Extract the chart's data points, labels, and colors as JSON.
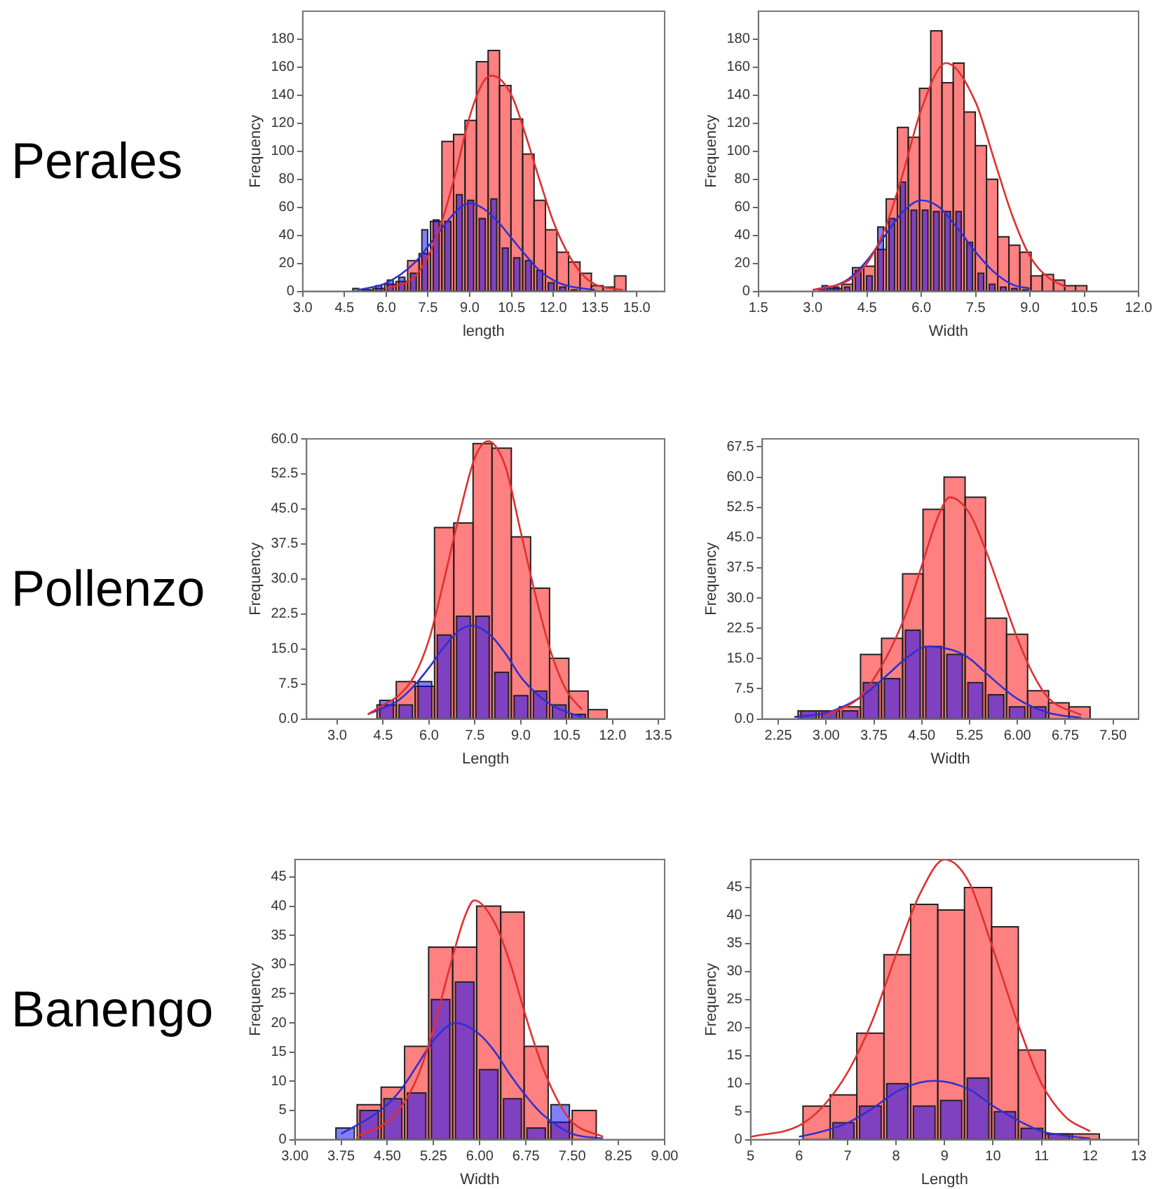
{
  "chart_data": [
    {
      "type": "histogram",
      "title": "Perales",
      "xlabel": "length",
      "ylabel": "Frequency",
      "xlim": [
        3,
        16
      ],
      "ylim": [
        0,
        200
      ],
      "xticks": [
        {
          "value": 3,
          "label": "3.0"
        },
        4.5,
        {
          "value": 6,
          "label": "6.0"
        },
        7.5,
        {
          "value": 9,
          "label": "9.0"
        },
        10.5,
        {
          "value": 12,
          "label": "12.0"
        },
        13.5,
        {
          "value": 15,
          "label": "15.0"
        }
      ],
      "yticks": [
        0,
        20,
        40,
        60,
        80,
        100,
        120,
        140,
        160,
        180
      ],
      "series": [
        {
          "color": "#ff8080",
          "bins": [
            5.11,
            5.53,
            5.94,
            6.35,
            6.77,
            7.18,
            7.59,
            8.0,
            8.42,
            8.83,
            9.24,
            9.66,
            10.07,
            10.48,
            10.9,
            11.31,
            11.72,
            12.13,
            12.55,
            12.96,
            13.37,
            13.79,
            14.2,
            14.61
          ],
          "values": [
            1,
            2,
            5,
            7,
            22,
            27,
            50,
            107,
            112,
            122,
            164,
            172,
            147,
            123,
            98,
            65,
            44,
            28,
            21,
            13,
            4,
            3,
            11
          ]
        },
        {
          "color": "#8080ff",
          "bins": [
            4.7,
            5.11,
            5.53,
            5.94,
            6.35,
            6.77,
            7.18,
            7.59,
            8.0,
            8.42,
            8.83,
            9.24,
            9.66,
            10.07,
            10.48,
            10.9,
            11.31,
            11.72,
            12.13,
            12.55,
            12.96
          ],
          "values": [
            2,
            1,
            4,
            8,
            10,
            13,
            44,
            51,
            50,
            69,
            65,
            52,
            66,
            31,
            24,
            22,
            15,
            6,
            3,
            1
          ]
        },
        {
          "type": "line",
          "color": "#e03030",
          "x": [
            6,
            7,
            7.5,
            8,
            8.5,
            9,
            9.5,
            9.8,
            10.5,
            11,
            11.5,
            12,
            12.5,
            13,
            13.5,
            14.5
          ],
          "values": [
            2,
            10,
            25,
            50,
            85,
            125,
            150,
            154,
            140,
            112,
            80,
            50,
            28,
            13,
            5,
            1
          ]
        },
        {
          "type": "line",
          "color": "#3030d0",
          "x": [
            5,
            6,
            7,
            7.5,
            8,
            8.5,
            9,
            9.5,
            10,
            10.5,
            11,
            11.5,
            12,
            12.5,
            13.5
          ],
          "values": [
            1,
            6,
            20,
            32,
            45,
            57,
            63,
            59,
            50,
            38,
            26,
            15,
            8,
            4,
            1
          ]
        }
      ]
    },
    {
      "type": "histogram",
      "xlabel": "Width",
      "ylabel": "Frequency",
      "xlim": [
        1.5,
        12
      ],
      "ylim": [
        0,
        200
      ],
      "xticks": [
        1.5,
        {
          "value": 3,
          "label": "3.0"
        },
        4.5,
        {
          "value": 6,
          "label": "6.0"
        },
        7.5,
        {
          "value": 9,
          "label": "9.0"
        },
        10.5,
        {
          "value": 12,
          "label": "12.0"
        }
      ],
      "yticks": [
        0,
        20,
        40,
        60,
        80,
        100,
        120,
        140,
        160,
        180
      ],
      "series": [
        {
          "color": "#ff8080",
          "bins": [
            3.18,
            3.49,
            3.8,
            4.1,
            4.41,
            4.72,
            5.03,
            5.34,
            5.64,
            5.95,
            6.26,
            6.57,
            6.88,
            7.18,
            7.49,
            7.8,
            8.11,
            8.42,
            8.72,
            9.03,
            9.34,
            9.65,
            9.96,
            10.26,
            10.57
          ],
          "values": [
            2,
            2,
            5,
            17,
            18,
            30,
            66,
            117,
            110,
            145,
            186,
            149,
            163,
            128,
            104,
            80,
            39,
            33,
            28,
            11,
            12,
            8,
            4,
            4
          ]
        },
        {
          "color": "#8080ff",
          "bins": [
            3.18,
            3.49,
            3.8,
            4.1,
            4.41,
            4.72,
            5.03,
            5.34,
            5.64,
            5.95,
            6.26,
            6.57,
            6.88,
            7.18,
            7.49,
            7.8,
            8.11,
            8.42,
            8.72,
            9.03
          ],
          "values": [
            4,
            3,
            3,
            15,
            11,
            46,
            52,
            78,
            58,
            58,
            57,
            57,
            57,
            35,
            13,
            5,
            3,
            2,
            1
          ]
        },
        {
          "type": "line",
          "color": "#e03030",
          "x": [
            3,
            4,
            4.5,
            5,
            5.5,
            6,
            6.68,
            7.5,
            8,
            8.5,
            9,
            9.5,
            10
          ],
          "values": [
            1,
            8,
            20,
            45,
            85,
            130,
            163,
            135,
            95,
            55,
            25,
            10,
            3
          ]
        },
        {
          "type": "line",
          "color": "#3030d0",
          "x": [
            3,
            3.5,
            4,
            4.5,
            5,
            5.5,
            6,
            6.5,
            7,
            7.5,
            8,
            8.5,
            9
          ],
          "values": [
            1,
            3,
            9,
            22,
            40,
            57,
            65,
            60,
            45,
            28,
            14,
            5,
            2
          ]
        }
      ]
    },
    {
      "type": "histogram",
      "title": "Pollenzo",
      "xlabel": "Length",
      "ylabel": "Frequency",
      "xlim": [
        2,
        13.7
      ],
      "ylim": [
        0,
        60
      ],
      "xticks": [
        {
          "value": 3,
          "label": "3.0"
        },
        4.5,
        {
          "value": 6,
          "label": "6.0"
        },
        7.5,
        {
          "value": 9,
          "label": "9.0"
        },
        10.5,
        {
          "value": 12,
          "label": "12.0"
        },
        13.5
      ],
      "yticks": [
        {
          "value": 0,
          "label": "0.0"
        },
        7.5,
        {
          "value": 15,
          "label": "15.0"
        },
        22.5,
        {
          "value": 30,
          "label": "30.0"
        },
        37.5,
        {
          "value": 45,
          "label": "45.0"
        },
        52.5,
        {
          "value": 60,
          "label": "60.0"
        }
      ],
      "series": [
        {
          "color": "#ff8080",
          "bins": [
            4.3,
            4.93,
            5.55,
            6.18,
            6.81,
            7.44,
            8.06,
            8.69,
            9.32,
            9.94,
            10.57,
            11.2,
            11.82
          ],
          "values": [
            3,
            8,
            7,
            41,
            42,
            59,
            58,
            39,
            28,
            13,
            6,
            2
          ]
        },
        {
          "color": "#8080ff",
          "bins": [
            4.3,
            4.93,
            5.55,
            6.18,
            6.81,
            7.44,
            8.06,
            8.69,
            9.32,
            9.94,
            10.57,
            11.2
          ],
          "values": [
            4,
            3,
            8,
            18,
            22,
            22,
            10,
            5,
            6,
            3,
            1
          ]
        },
        {
          "type": "line",
          "color": "#e03030",
          "x": [
            4,
            4.5,
            5,
            5.5,
            6,
            6.5,
            7,
            7.5,
            7.93,
            8.5,
            9,
            9.5,
            10,
            10.5,
            11
          ],
          "values": [
            1,
            3,
            5,
            9,
            17,
            30,
            44,
            56,
            59.5,
            54,
            40,
            26,
            14,
            6,
            2
          ]
        },
        {
          "type": "line",
          "color": "#3030d0",
          "x": [
            4,
            5,
            5.5,
            6,
            6.5,
            7,
            7.4,
            8,
            8.5,
            9,
            9.5,
            10,
            10.5,
            11
          ],
          "values": [
            1,
            4,
            7,
            11,
            15.5,
            19,
            20,
            18,
            14,
            9,
            5.5,
            3,
            1.5,
            0.5
          ]
        }
      ]
    },
    {
      "type": "histogram",
      "xlabel": "Width",
      "ylabel": "Frequency",
      "xlim": [
        2,
        7.9
      ],
      "ylim": [
        0,
        69.5
      ],
      "xticks": [
        2.25,
        {
          "value": 3,
          "label": "3.00"
        },
        3.75,
        {
          "value": 4.5,
          "label": "4.50"
        },
        5.25,
        {
          "value": 6,
          "label": "6.00"
        },
        6.75,
        {
          "value": 7.5,
          "label": "7.50"
        }
      ],
      "yticks": [
        {
          "value": 0,
          "label": "0.0"
        },
        7.5,
        {
          "value": 15,
          "label": "15.0"
        },
        22.5,
        {
          "value": 30,
          "label": "30.0"
        },
        37.5,
        {
          "value": 45,
          "label": "45.0"
        },
        52.5,
        {
          "value": 60,
          "label": "60.0"
        },
        67.5
      ],
      "series": [
        {
          "color": "#ff8080",
          "bins": [
            2.56,
            2.89,
            3.21,
            3.54,
            3.87,
            4.2,
            4.52,
            4.85,
            5.18,
            5.5,
            5.83,
            6.16,
            6.49,
            6.81,
            7.14
          ],
          "values": [
            2,
            2,
            3,
            16,
            20,
            36,
            52,
            60,
            55,
            25,
            21,
            7,
            4,
            3
          ]
        },
        {
          "color": "#8080ff",
          "bins": [
            2.56,
            2.89,
            3.21,
            3.54,
            3.87,
            4.2,
            4.52,
            4.85,
            5.18,
            5.5,
            5.83,
            6.16,
            6.49
          ],
          "values": [
            2,
            2,
            2,
            9,
            10,
            22,
            18,
            16,
            9,
            6,
            3,
            3
          ]
        },
        {
          "type": "line",
          "color": "#e03030",
          "x": [
            3,
            3.5,
            3.75,
            4,
            4.25,
            4.5,
            4.75,
            4.94,
            5.25,
            5.5,
            5.75,
            6,
            6.25,
            6.5,
            7
          ],
          "values": [
            1,
            5,
            10,
            17,
            26,
            38,
            50,
            55,
            51,
            42,
            31,
            20,
            11,
            5,
            1
          ]
        },
        {
          "type": "line",
          "color": "#3030d0",
          "x": [
            2.5,
            3,
            3.5,
            3.75,
            4,
            4.25,
            4.6,
            5,
            5.25,
            5.5,
            6,
            6.5,
            7
          ],
          "values": [
            0.5,
            1.5,
            5,
            8,
            11.5,
            15,
            18,
            17,
            15,
            11.5,
            5,
            1.5,
            0.3
          ]
        }
      ]
    },
    {
      "type": "histogram",
      "title": "Banengo",
      "xlabel": "Width",
      "ylabel": "Frequency",
      "xlim": [
        3,
        9
      ],
      "ylim": [
        0,
        48
      ],
      "xticks": [
        {
          "value": 3,
          "label": "3.00"
        },
        3.75,
        {
          "value": 4.5,
          "label": "4.50"
        },
        5.25,
        {
          "value": 6,
          "label": "6.00"
        },
        6.75,
        {
          "value": 7.5,
          "label": "7.50"
        },
        8.25,
        {
          "value": 9,
          "label": "9.00"
        }
      ],
      "yticks": [
        0,
        5,
        10,
        15,
        20,
        25,
        30,
        35,
        40,
        45
      ],
      "series": [
        {
          "color": "#ff8080",
          "bins": [
            4.01,
            4.4,
            4.78,
            5.17,
            5.56,
            5.95,
            6.34,
            6.72,
            7.11,
            7.5,
            7.89
          ],
          "values": [
            6,
            9,
            16,
            33,
            33,
            40,
            39,
            16,
            3,
            5
          ]
        },
        {
          "color": "#8080ff",
          "bins": [
            3.62,
            4.01,
            4.4,
            4.78,
            5.17,
            5.56,
            5.95,
            6.34,
            6.72,
            7.11,
            7.5
          ],
          "values": [
            2,
            5,
            7,
            8,
            24,
            27,
            12,
            7,
            2,
            6
          ]
        },
        {
          "type": "line",
          "color": "#e03030",
          "x": [
            4,
            4.5,
            4.75,
            5,
            5.25,
            5.5,
            5.75,
            5.91,
            6.25,
            6.5,
            6.75,
            7,
            7.25,
            7.5,
            8
          ],
          "values": [
            0.5,
            3,
            6,
            11,
            19,
            29,
            38,
            41,
            37,
            30,
            21,
            13,
            7,
            3,
            0.5
          ]
        },
        {
          "type": "line",
          "color": "#3030d0",
          "x": [
            3.75,
            4.25,
            4.5,
            4.75,
            5,
            5.25,
            5.61,
            6,
            6.25,
            6.5,
            6.75,
            7,
            7.5,
            8
          ],
          "values": [
            1,
            4,
            6,
            9,
            13,
            17,
            20,
            18,
            15,
            11,
            7.5,
            4.5,
            1,
            0.2
          ]
        }
      ]
    },
    {
      "type": "histogram",
      "xlabel": "Length",
      "ylabel": "Frequency",
      "xlim": [
        5,
        13
      ],
      "ylim": [
        0,
        50
      ],
      "xticks": [
        5,
        6,
        7,
        8,
        9,
        10,
        11,
        12,
        13
      ],
      "yticks": [
        0,
        5,
        10,
        15,
        20,
        25,
        30,
        35,
        40,
        45
      ],
      "series": [
        {
          "color": "#ff8080",
          "bins": [
            6.08,
            6.64,
            7.19,
            7.75,
            8.3,
            8.86,
            9.41,
            9.97,
            10.52,
            11.08,
            11.63,
            12.19
          ],
          "values": [
            6,
            8,
            19,
            33,
            42,
            41,
            45,
            38,
            16,
            1,
            1
          ]
        },
        {
          "color": "#8080ff",
          "bins": [
            6.64,
            7.19,
            7.75,
            8.3,
            8.86,
            9.41,
            9.97,
            10.52,
            11.08,
            11.63
          ],
          "values": [
            3,
            6,
            10,
            6,
            7,
            11,
            5,
            2,
            1
          ]
        },
        {
          "type": "line",
          "color": "#e03030",
          "x": [
            5,
            6,
            6.5,
            7,
            7.5,
            8,
            8.5,
            9,
            9.5,
            10,
            10.5,
            11,
            11.5,
            12
          ],
          "values": [
            0.5,
            2.5,
            6,
            12,
            21,
            33,
            44,
            50,
            46,
            34,
            21,
            10,
            4,
            1.5
          ]
        },
        {
          "type": "line",
          "color": "#3030d0",
          "x": [
            6,
            6.5,
            7,
            7.5,
            8,
            8.5,
            8.8,
            9.5,
            10,
            10.5,
            11,
            11.5,
            12
          ],
          "values": [
            0.5,
            1.5,
            3,
            5.5,
            8.5,
            10.2,
            10.5,
            9,
            6,
            3.5,
            1.5,
            0.7,
            0.2
          ]
        }
      ]
    }
  ]
}
